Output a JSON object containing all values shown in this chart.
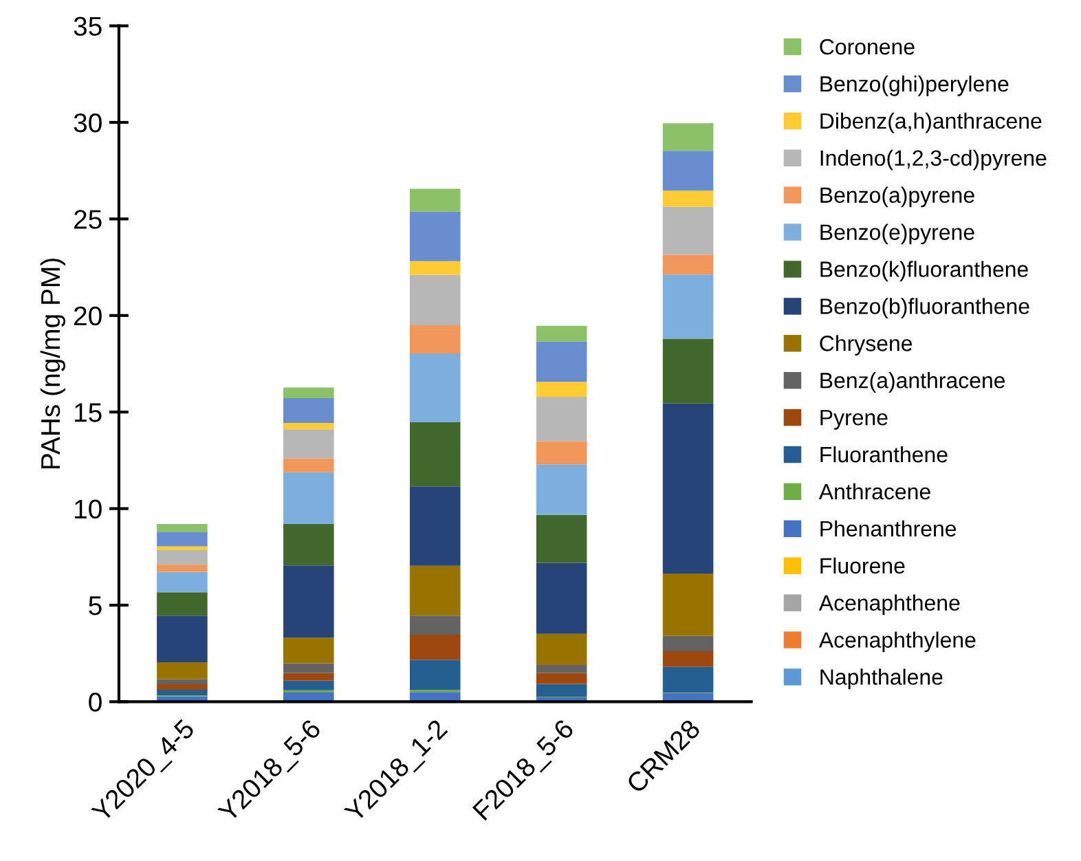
{
  "chart_data": {
    "type": "bar",
    "stacked": true,
    "ylabel": "PAHs (ng/mg PM)",
    "categories": [
      "Y2020_4-5",
      "Y2018_5-6",
      "Y2018_1-2",
      "F2018_5-6",
      "CRM28"
    ],
    "ylim": [
      0,
      35
    ],
    "yticks": [
      0,
      5,
      10,
      15,
      20,
      25,
      30,
      35
    ],
    "grid": false,
    "legend": "right",
    "series": [
      {
        "name": "Naphthalene",
        "color": "#5b9bd5",
        "values": [
          null,
          null,
          null,
          null,
          null
        ]
      },
      {
        "name": "Acenaphthylene",
        "color": "#ed7d31",
        "values": [
          null,
          null,
          null,
          null,
          null
        ]
      },
      {
        "name": "Acenaphthene",
        "color": "#a5a5a5",
        "values": [
          null,
          null,
          null,
          null,
          null
        ]
      },
      {
        "name": "Fluorene",
        "color": "#ffc000",
        "values": [
          null,
          null,
          null,
          null,
          null
        ]
      },
      {
        "name": "Phenanthrene",
        "color": "#4472c4",
        "values": [
          0.28,
          0.48,
          0.5,
          0.23,
          0.45
        ]
      },
      {
        "name": "Anthracene",
        "color": "#70ad47",
        "values": [
          0.05,
          0.11,
          0.12,
          0.03,
          0.03
        ]
      },
      {
        "name": "Fluoranthene",
        "color": "#255e91",
        "values": [
          0.29,
          0.5,
          1.56,
          0.66,
          1.32
        ]
      },
      {
        "name": "Pyrene",
        "color": "#9e480e",
        "values": [
          0.28,
          0.4,
          1.29,
          0.57,
          0.81
        ]
      },
      {
        "name": "Benz(a)anthracene",
        "color": "#636363",
        "values": [
          0.26,
          0.5,
          0.99,
          0.41,
          0.8
        ]
      },
      {
        "name": "Chrysene",
        "color": "#997300",
        "values": [
          0.88,
          1.33,
          2.58,
          1.61,
          3.23
        ]
      },
      {
        "name": "Benzo(b)fluoranthene",
        "color": "#264478",
        "values": [
          2.42,
          3.74,
          4.11,
          3.68,
          8.8
        ]
      },
      {
        "name": "Benzo(k)fluoranthene",
        "color": "#43682b",
        "values": [
          1.21,
          2.14,
          3.32,
          2.48,
          3.36
        ]
      },
      {
        "name": "Benzo(e)pyrene",
        "color": "#7cafdd",
        "values": [
          1.06,
          2.68,
          3.56,
          2.62,
          3.32
        ]
      },
      {
        "name": "Benzo(a)pyrene",
        "color": "#f1975a",
        "values": [
          0.38,
          0.71,
          1.46,
          1.2,
          1.02
        ]
      },
      {
        "name": "Indeno(1,2,3-cd)pyrene",
        "color": "#b7b7b7",
        "values": [
          0.74,
          1.52,
          2.61,
          2.3,
          2.49
        ]
      },
      {
        "name": "Dibenz(a,h)anthracene",
        "color": "#ffcd33",
        "values": [
          0.19,
          0.33,
          0.71,
          0.77,
          0.83
        ]
      },
      {
        "name": "Benzo(ghi)perylene",
        "color": "#698ed0",
        "values": [
          0.76,
          1.28,
          2.57,
          2.1,
          2.07
        ]
      },
      {
        "name": "Coronene",
        "color": "#8cc168",
        "values": [
          0.4,
          0.55,
          1.18,
          0.81,
          1.42
        ]
      }
    ]
  }
}
